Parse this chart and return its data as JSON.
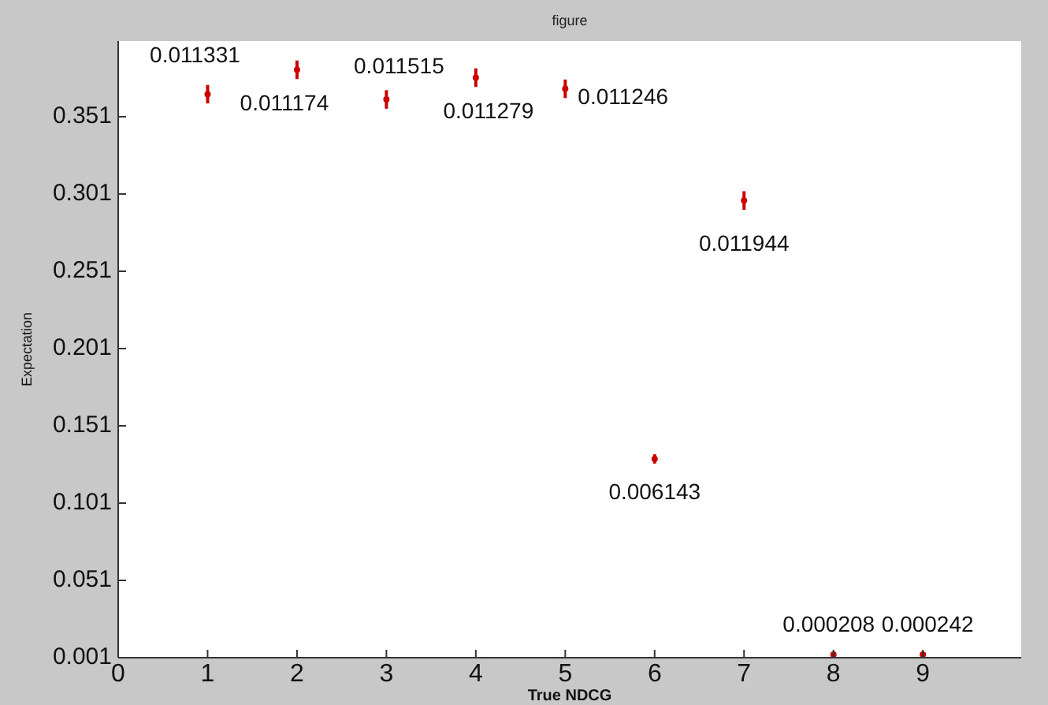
{
  "chart_data": {
    "type": "scatter",
    "title": "figure",
    "xlabel": "True NDCG",
    "ylabel": "Expectation",
    "x": [
      1,
      2,
      3,
      4,
      5,
      6,
      7,
      8,
      9
    ],
    "series": [
      {
        "color": "#cc0000",
        "values": [
          0.3656,
          0.3814,
          0.3622,
          0.3763,
          0.3691,
          0.1296,
          0.2968,
          0.003,
          0.003
        ],
        "errors": [
          0.006,
          0.006,
          0.006,
          0.006,
          0.006,
          0.003,
          0.006,
          null,
          null
        ]
      }
    ],
    "xlim": [
      0,
      10.1
    ],
    "ylim": [
      0.001,
      0.4
    ],
    "xticks": [
      0,
      1,
      2,
      3,
      4,
      5,
      6,
      7,
      8,
      9
    ],
    "yticks": [
      0.001,
      0.051,
      0.101,
      0.151,
      0.201,
      0.251,
      0.301,
      0.351
    ],
    "grid": false,
    "annotations": [
      {
        "text": "0.011331",
        "x": 1,
        "y": 0.3656
      },
      {
        "text": "0.011174",
        "x": 2,
        "y": 0.3814
      },
      {
        "text": "0.011515",
        "x": 3,
        "y": 0.3622
      },
      {
        "text": "0.011279",
        "x": 4,
        "y": 0.3763
      },
      {
        "text": "0.011246",
        "x": 5,
        "y": 0.3691
      },
      {
        "text": "0.006143",
        "x": 6,
        "y": 0.1296
      },
      {
        "text": "0.011944",
        "x": 7,
        "y": 0.2968
      },
      {
        "text": "0.000208",
        "x": 8,
        "y": 0.003
      },
      {
        "text": "0.000242",
        "x": 9,
        "y": 0.003
      }
    ]
  }
}
